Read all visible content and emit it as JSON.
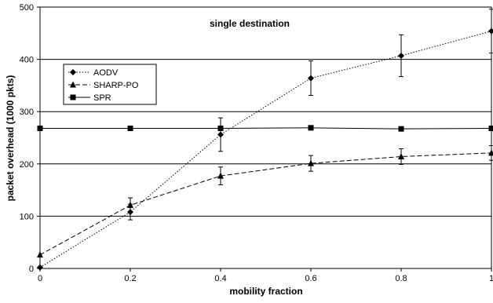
{
  "chart_data": {
    "type": "line",
    "title": "single destination",
    "xlabel": "mobility fraction",
    "ylabel": "packet overhead (1000 pkts)",
    "xlim": [
      0,
      1
    ],
    "ylim": [
      0,
      500
    ],
    "xticks": [
      "0",
      "0.2",
      "0.4",
      "0.6",
      "0.8",
      "1"
    ],
    "xtick_values": [
      0,
      0.2,
      0.4,
      0.6,
      0.8,
      1
    ],
    "yticks": [
      "0",
      "100",
      "200",
      "300",
      "400",
      "500"
    ],
    "ytick_values": [
      0,
      100,
      200,
      300,
      400,
      500
    ],
    "grid": "horizontal",
    "legend_position": "upper-left",
    "series": [
      {
        "name": "AODV",
        "marker": "diamond",
        "dash": "dotted",
        "x": [
          0,
          0.2,
          0.4,
          0.6,
          0.8,
          1
        ],
        "y": [
          2,
          108,
          256,
          364,
          407,
          454
        ],
        "err": [
          0,
          15,
          32,
          33,
          40,
          42
        ]
      },
      {
        "name": "SHARP-PO",
        "marker": "triangle",
        "dash": "dashed",
        "x": [
          0,
          0.2,
          0.4,
          0.6,
          0.8,
          1
        ],
        "y": [
          26,
          121,
          177,
          201,
          214,
          221
        ],
        "err": [
          0,
          14,
          17,
          15,
          15,
          14
        ]
      },
      {
        "name": "SPR",
        "marker": "square",
        "dash": "solid",
        "x": [
          0,
          0.2,
          0.4,
          0.6,
          0.8,
          1
        ],
        "y": [
          268,
          268,
          268,
          269,
          267,
          268
        ],
        "err": [
          0,
          0,
          0,
          0,
          0,
          0
        ]
      }
    ]
  }
}
